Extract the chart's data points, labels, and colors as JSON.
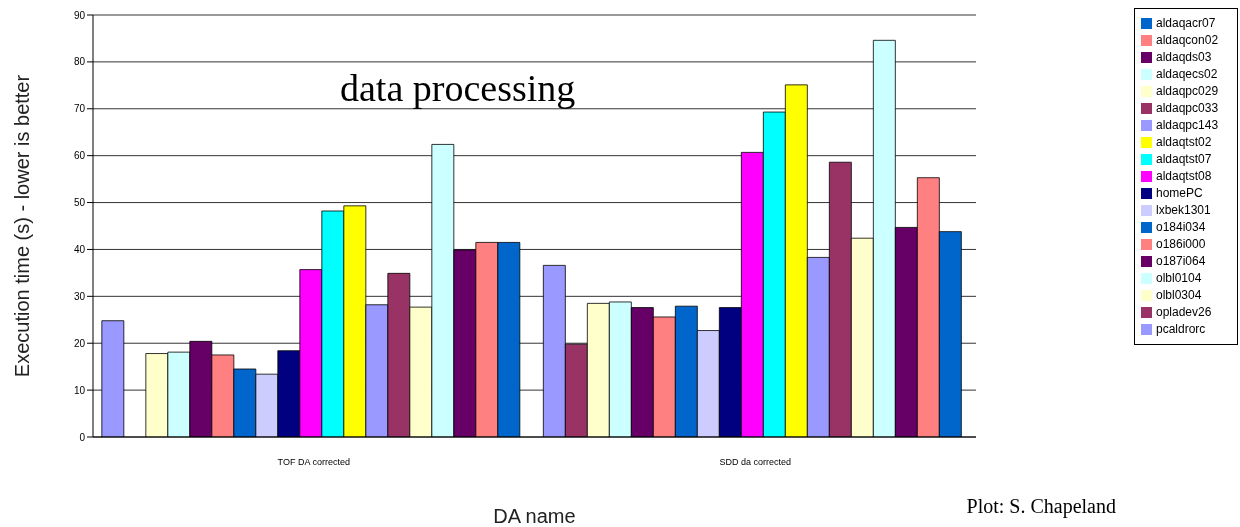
{
  "chart_data": {
    "type": "bar",
    "title": "data processing",
    "xlabel": "DA name",
    "ylabel": "Execution time (s) - lower is better",
    "annotations": [
      "Plot: S. Chapeland"
    ],
    "categories": [
      "TOF DA corrected",
      "SDD da corrected"
    ],
    "series": [
      {
        "name": "pcaldrorc",
        "color": "#9999ff",
        "values": [
          24.8,
          36.6
        ]
      },
      {
        "name": "opladev26",
        "color": "#993366",
        "values": [
          null,
          19.8
        ]
      },
      {
        "name": "olbl0304",
        "color": "#ffffcc",
        "values": [
          17.8,
          28.5
        ]
      },
      {
        "name": "olbl0104",
        "color": "#ccffff",
        "values": [
          18.1,
          28.8
        ]
      },
      {
        "name": "o187i064",
        "color": "#660066",
        "values": [
          20.4,
          27.6
        ]
      },
      {
        "name": "o186i000",
        "color": "#ff8080",
        "values": [
          17.5,
          25.6
        ]
      },
      {
        "name": "o184i034",
        "color": "#0066cc",
        "values": [
          14.5,
          27.9
        ]
      },
      {
        "name": "lxbek1301",
        "color": "#ccccff",
        "values": [
          13.4,
          22.7
        ]
      },
      {
        "name": "homePC",
        "color": "#000080",
        "values": [
          18.4,
          27.6
        ]
      },
      {
        "name": "aldaqtst08",
        "color": "#ff00ff",
        "values": [
          35.7,
          60.7
        ]
      },
      {
        "name": "aldaqtst07",
        "color": "#00ffff",
        "values": [
          48.2,
          69.3
        ]
      },
      {
        "name": "aldaqtst02",
        "color": "#ffff00",
        "values": [
          49.3,
          75.1
        ]
      },
      {
        "name": "aldaqpc143",
        "color": "#9999ff",
        "values": [
          28.2,
          38.3
        ]
      },
      {
        "name": "aldaqpc033",
        "color": "#993366",
        "values": [
          34.9,
          58.6
        ]
      },
      {
        "name": "aldaqpc029",
        "color": "#ffffcc",
        "values": [
          27.7,
          42.4
        ]
      },
      {
        "name": "aldaqecs02",
        "color": "#ccffff",
        "values": [
          62.4,
          84.6
        ]
      },
      {
        "name": "aldaqds03",
        "color": "#660066",
        "values": [
          39.9,
          44.7
        ]
      },
      {
        "name": "aldaqcon02",
        "color": "#ff8080",
        "values": [
          41.5,
          55.3
        ]
      },
      {
        "name": "aldaqacr07",
        "color": "#0066cc",
        "values": [
          41.5,
          43.8
        ]
      }
    ],
    "ylim": [
      0,
      90
    ],
    "yticks": [
      0,
      10,
      20,
      30,
      40,
      50,
      60,
      70,
      80,
      90
    ],
    "grid": "y",
    "legend": "right"
  }
}
